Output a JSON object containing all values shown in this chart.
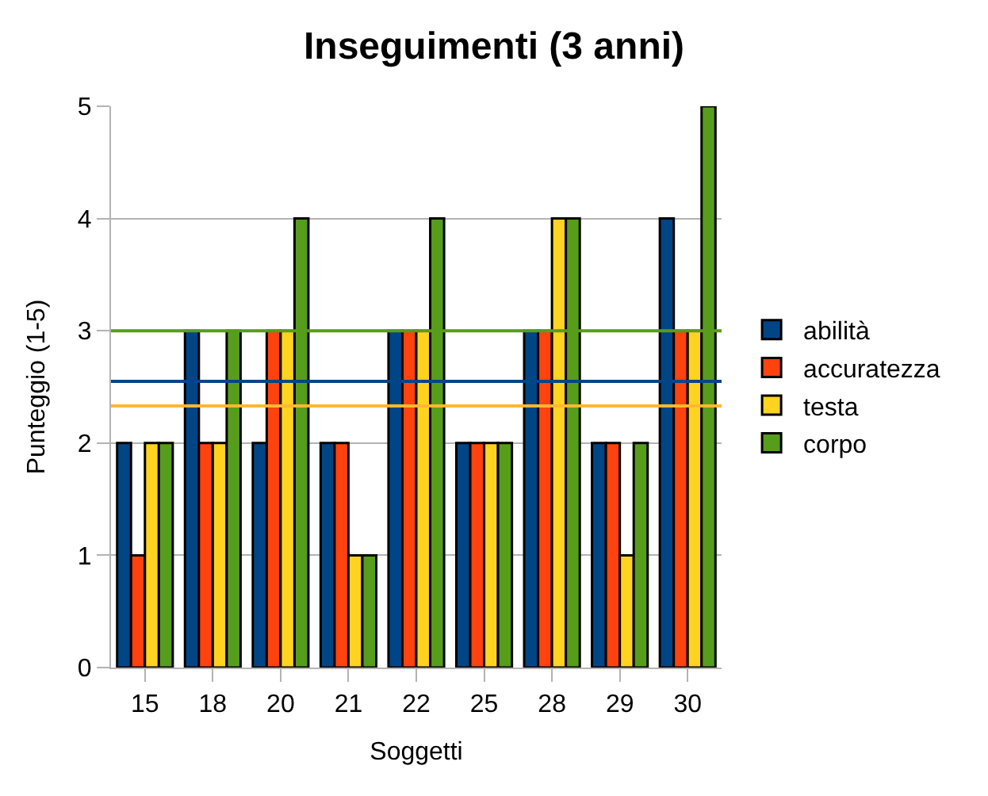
{
  "chart_data": {
    "type": "bar",
    "title": "Inseguimenti (3 anni)",
    "xlabel": "Soggetti",
    "ylabel": "Punteggio (1-5)",
    "categories": [
      "15",
      "18",
      "20",
      "21",
      "22",
      "25",
      "28",
      "29",
      "30"
    ],
    "series": [
      {
        "name": "abilità",
        "color": "#004586",
        "values": [
          2,
          3,
          2,
          2,
          3,
          2,
          3,
          2,
          4
        ]
      },
      {
        "name": "accuratezza",
        "color": "#ff420e",
        "values": [
          1,
          2,
          3,
          2,
          3,
          2,
          3,
          2,
          3
        ]
      },
      {
        "name": "testa",
        "color": "#ffd320",
        "values": [
          2,
          2,
          3,
          1,
          3,
          2,
          4,
          1,
          3
        ]
      },
      {
        "name": "corpo",
        "color": "#579d1c",
        "values": [
          2,
          3,
          4,
          1,
          4,
          2,
          4,
          2,
          5
        ]
      }
    ],
    "ylim": [
      0,
      5
    ],
    "yticks": [
      0,
      1,
      2,
      3,
      4,
      5
    ],
    "grid": "y",
    "legend": "right",
    "ref_lines": [
      {
        "axis": "y",
        "value": 3,
        "color": "#579d1c"
      },
      {
        "axis": "y",
        "value": 2.55,
        "color": "#004586"
      },
      {
        "axis": "y",
        "value": 2.33,
        "color": "#ffb833"
      }
    ]
  }
}
